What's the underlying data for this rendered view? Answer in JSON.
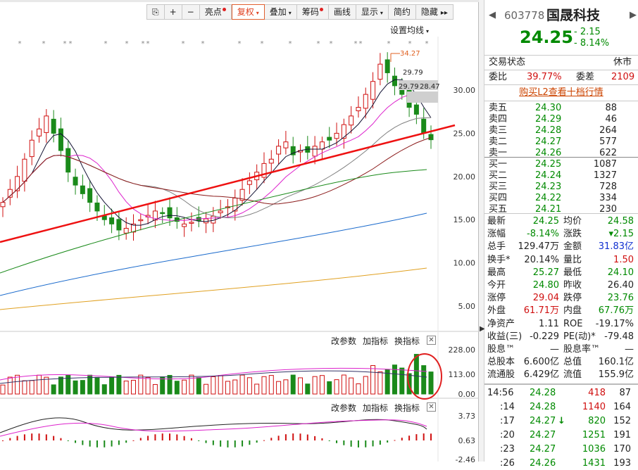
{
  "toolbar": {
    "items": [
      {
        "id": "capture",
        "icon": "capture-icon",
        "glyph": "⎘"
      },
      {
        "id": "crosshair",
        "icon": "crosshair-icon",
        "glyph": "+"
      },
      {
        "id": "zoom_out",
        "icon": "minus-icon",
        "glyph": "−"
      },
      {
        "id": "highlight",
        "label": "亮点",
        "dot": true
      },
      {
        "id": "adjust",
        "label": "复权",
        "caret": true,
        "active": true
      },
      {
        "id": "overlay",
        "label": "叠加",
        "caret": true
      },
      {
        "id": "chips",
        "label": "筹码",
        "dot": true
      },
      {
        "id": "draw",
        "label": "画线"
      },
      {
        "id": "display",
        "label": "显示",
        "caret": true
      },
      {
        "id": "simple",
        "label": "简约"
      },
      {
        "id": "hide",
        "label": "隐藏",
        "arrows": "▸▸"
      }
    ]
  },
  "kline": {
    "ma_setting": "设置均线",
    "y_ticks": [
      "30.00",
      "25.00",
      "20.00",
      "15.00",
      "10.00",
      "5.00"
    ],
    "high_label": "34.27",
    "ann1": "29.79",
    "ann2": "29.79",
    "ann3": "28.47"
  },
  "volume": {
    "tools": [
      "改参数",
      "加指标",
      "换指标"
    ],
    "y_ticks": [
      "228.00",
      "113.00",
      "0.00"
    ]
  },
  "macd": {
    "tools": [
      "改参数",
      "加指标",
      "换指标"
    ],
    "y_ticks": [
      "3.73",
      "0.63",
      "-2.46"
    ]
  },
  "quote": {
    "code": "603778",
    "name": "国晟科技",
    "price": "24.25",
    "change": "- 2.15",
    "change_pct": "- 8.14%",
    "trade_status_label": "交易状态",
    "trade_status": "休市",
    "weibi_label": "委比",
    "weibi": "39.77%",
    "weicha_label": "委差",
    "weicha": "2109",
    "l2_link": "购买L2查看十档行情",
    "asks": [
      {
        "label": "卖五",
        "price": "24.30",
        "vol": "88"
      },
      {
        "label": "卖四",
        "price": "24.29",
        "vol": "46"
      },
      {
        "label": "卖三",
        "price": "24.28",
        "vol": "264"
      },
      {
        "label": "卖二",
        "price": "24.27",
        "vol": "577"
      },
      {
        "label": "卖一",
        "price": "24.26",
        "vol": "622"
      }
    ],
    "bids": [
      {
        "label": "买一",
        "price": "24.25",
        "vol": "1087"
      },
      {
        "label": "买二",
        "price": "24.24",
        "vol": "1327"
      },
      {
        "label": "买三",
        "price": "24.23",
        "vol": "728"
      },
      {
        "label": "买四",
        "price": "24.22",
        "vol": "334"
      },
      {
        "label": "买五",
        "price": "24.21",
        "vol": "230"
      }
    ],
    "stats": [
      {
        "l1": "最新",
        "v1": "24.25",
        "c1": "green",
        "l2": "均价",
        "v2": "24.58",
        "c2": "green"
      },
      {
        "l1": "涨幅",
        "v1": "-8.14%",
        "c1": "green",
        "l2": "涨跌",
        "v2": "▾2.15",
        "c2": "green"
      },
      {
        "l1": "总手",
        "v1": "129.47万",
        "c1": "black",
        "l2": "金额",
        "v2": "31.83亿",
        "c2": "blue"
      },
      {
        "l1": "换手*",
        "v1": "20.14%",
        "c1": "black",
        "l2": "量比",
        "v2": "1.50",
        "c2": "red"
      },
      {
        "l1": "最高",
        "v1": "25.27",
        "c1": "green",
        "l2": "最低",
        "v2": "24.10",
        "c2": "green"
      },
      {
        "l1": "今开",
        "v1": "24.80",
        "c1": "green",
        "l2": "昨收",
        "v2": "26.40",
        "c2": "black"
      },
      {
        "l1": "涨停",
        "v1": "29.04",
        "c1": "red",
        "l2": "跌停",
        "v2": "23.76",
        "c2": "green"
      },
      {
        "l1": "外盘",
        "v1": "61.71万",
        "c1": "red",
        "l2": "内盘",
        "v2": "67.76万",
        "c2": "green"
      },
      {
        "l1": "净资产",
        "v1": "1.11",
        "c1": "black",
        "l2": "ROE",
        "v2": "-19.17%",
        "c2": "black"
      },
      {
        "l1": "收益(三)",
        "v1": "-0.229",
        "c1": "black",
        "l2": "PE(动)*",
        "v2": "-79.48",
        "c2": "black"
      },
      {
        "l1": "股息™",
        "v1": "—",
        "c1": "black",
        "l2": "股息率™",
        "v2": "—",
        "c2": "black"
      },
      {
        "l1": "总股本",
        "v1": "6.600亿",
        "c1": "black",
        "l2": "总值",
        "v2": "160.1亿",
        "c2": "black"
      },
      {
        "l1": "流通股",
        "v1": "6.429亿",
        "c1": "black",
        "l2": "流值",
        "v2": "155.9亿",
        "c2": "black"
      }
    ],
    "ticks": [
      {
        "time": "14:56",
        "price": "24.28",
        "vol": "418",
        "vcolor": "red",
        "num": "87"
      },
      {
        "time": ":14",
        "price": "24.28",
        "vol": "1140",
        "vcolor": "red",
        "num": "164"
      },
      {
        "time": ":17",
        "price": "24.27",
        "vol": "820",
        "vcolor": "green",
        "num": "152",
        "arrow": true
      },
      {
        "time": ":20",
        "price": "24.27",
        "vol": "1251",
        "vcolor": "green",
        "num": "191"
      },
      {
        "time": ":23",
        "price": "24.27",
        "vol": "1036",
        "vcolor": "green",
        "num": "170"
      },
      {
        "time": ":26",
        "price": "24.26",
        "vol": "1431",
        "vcolor": "green",
        "num": "193"
      }
    ]
  },
  "colors": {
    "up": "#d01010",
    "down": "#1a8a1a",
    "trend": "#ee1111",
    "ma5": "#111133",
    "ma10": "#dd22cc",
    "ma20": "#808080",
    "ma30": "#8b1a1a",
    "ma60": "#1a8a1a",
    "ma120": "#1a6acc",
    "ma250": "#e0a020"
  }
}
